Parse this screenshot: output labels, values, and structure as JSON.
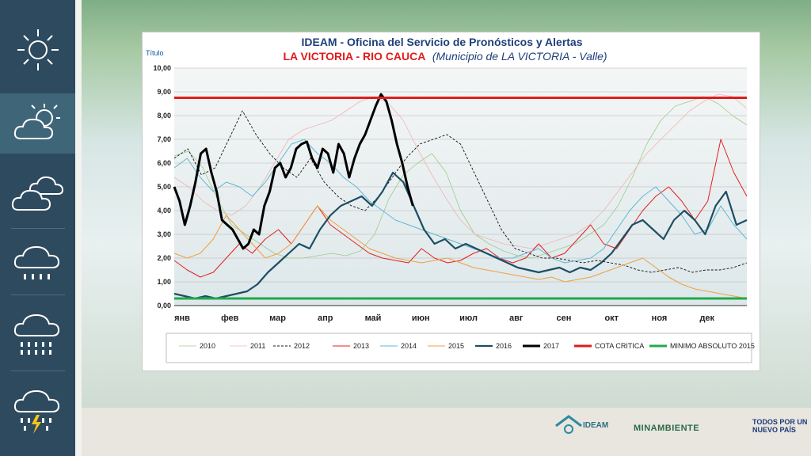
{
  "sidebar": {
    "items": [
      {
        "icon": "sun-icon"
      },
      {
        "icon": "partly-cloudy-icon",
        "active": true
      },
      {
        "icon": "cloudy-icon"
      },
      {
        "icon": "light-rain-icon"
      },
      {
        "icon": "heavy-rain-icon"
      },
      {
        "icon": "thunderstorm-icon"
      }
    ]
  },
  "footer": {
    "ideam_label": "IDEAM",
    "ministry_label": "MINAMBIENTE",
    "gov_line1": "TODOS POR UN",
    "gov_line2": "NUEVO PAÍS"
  },
  "chart_data": {
    "type": "line",
    "title": "IDEAM - Oficina del Servicio de Pronósticos y Alertas",
    "subtitle_red": "LA VICTORIA - RIO CAUCA",
    "subtitle_italic": "(Municipio de LA VICTORIA - Valle)",
    "ylabel": "Título",
    "ylim": [
      0,
      10
    ],
    "yticks": [
      "0,00",
      "1,00",
      "2,00",
      "3,00",
      "4,00",
      "5,00",
      "6,00",
      "7,00",
      "8,00",
      "9,00",
      "10,00"
    ],
    "xlabels": [
      "янв",
      "фев",
      "мар",
      "апр",
      "май",
      "июн",
      "июл",
      "авг",
      "сен",
      "окт",
      "ноя",
      "дек"
    ],
    "grid": true,
    "legend_position": "bottom",
    "series": [
      {
        "name": "2010",
        "color": "#9ccc8a",
        "width": 0.8,
        "dash": "",
        "values": [
          6.3,
          6.5,
          5.8,
          4.5,
          3.4,
          3.0,
          2.6,
          2.2,
          2.0,
          2.0,
          2.1,
          2.2,
          2.1,
          2.3,
          3.0,
          4.5,
          5.5,
          6.0,
          6.4,
          5.6,
          4.0,
          3.0,
          2.6,
          2.3,
          2.1,
          2.0,
          2.2,
          2.4,
          2.6,
          3.0,
          3.4,
          4.2,
          5.4,
          6.8,
          7.8,
          8.4,
          8.6,
          8.8,
          8.5,
          8.0,
          7.6
        ]
      },
      {
        "name": "2011",
        "color": "#f0b4b4",
        "width": 0.8,
        "dash": "",
        "values": [
          5.4,
          5.0,
          4.4,
          4.0,
          3.8,
          4.2,
          5.0,
          6.0,
          7.0,
          7.4,
          7.6,
          7.8,
          8.2,
          8.6,
          8.8,
          8.5,
          7.8,
          6.6,
          5.5,
          4.5,
          3.6,
          3.0,
          2.8,
          2.6,
          2.5,
          2.4,
          2.6,
          2.8,
          3.0,
          3.4,
          4.0,
          4.8,
          5.6,
          6.4,
          7.0,
          7.6,
          8.2,
          8.6,
          8.9,
          8.8,
          8.3
        ]
      },
      {
        "name": "2012",
        "color": "#111111",
        "width": 0.9,
        "dash": "3,2",
        "values": [
          6.2,
          6.6,
          5.5,
          5.8,
          7.0,
          8.2,
          7.2,
          6.4,
          5.8,
          5.4,
          6.2,
          5.2,
          4.6,
          4.2,
          4.0,
          4.6,
          5.4,
          6.2,
          6.8,
          7.0,
          7.2,
          6.8,
          5.6,
          4.4,
          3.2,
          2.4,
          2.2,
          2.0,
          2.0,
          1.9,
          1.8,
          1.9,
          1.8,
          1.7,
          1.5,
          1.4,
          1.5,
          1.6,
          1.4,
          1.5,
          1.5,
          1.6,
          1.8
        ]
      },
      {
        "name": "2013",
        "color": "#e32020",
        "width": 1.0,
        "dash": "",
        "values": [
          1.9,
          1.5,
          1.2,
          1.4,
          2.0,
          2.6,
          2.2,
          2.8,
          3.2,
          2.6,
          3.4,
          4.2,
          3.4,
          3.0,
          2.6,
          2.2,
          2.0,
          1.9,
          1.8,
          2.4,
          2.0,
          1.8,
          1.9,
          2.2,
          2.4,
          2.0,
          1.8,
          2.0,
          2.6,
          2.0,
          2.2,
          2.8,
          3.4,
          2.6,
          2.4,
          3.2,
          4.0,
          4.6,
          5.0,
          4.4,
          3.6,
          4.4,
          7.0,
          5.6,
          4.6
        ]
      },
      {
        "name": "2014",
        "color": "#5fb7d4",
        "width": 1.0,
        "dash": "",
        "values": [
          5.8,
          6.2,
          5.4,
          4.8,
          5.2,
          5.0,
          4.6,
          5.2,
          6.0,
          6.8,
          7.0,
          6.4,
          6.0,
          5.4,
          5.0,
          4.4,
          4.0,
          3.6,
          3.4,
          3.2,
          3.0,
          2.8,
          2.6,
          2.4,
          2.2,
          2.0,
          2.0,
          2.2,
          2.4,
          2.0,
          1.8,
          1.9,
          2.0,
          2.4,
          3.2,
          4.0,
          4.6,
          5.0,
          4.4,
          3.8,
          3.0,
          3.2,
          4.2,
          3.4,
          2.8
        ]
      },
      {
        "name": "2015",
        "color": "#f0a040",
        "width": 1.0,
        "dash": "",
        "values": [
          2.2,
          2.0,
          2.2,
          2.8,
          3.8,
          3.2,
          2.6,
          2.0,
          2.2,
          2.6,
          3.4,
          4.2,
          3.6,
          3.2,
          2.8,
          2.4,
          2.2,
          2.0,
          1.9,
          1.8,
          1.9,
          2.0,
          1.8,
          1.6,
          1.5,
          1.4,
          1.3,
          1.2,
          1.1,
          1.2,
          1.0,
          1.1,
          1.2,
          1.4,
          1.6,
          1.8,
          2.0,
          1.6,
          1.2,
          0.9,
          0.7,
          0.6,
          0.5,
          0.4,
          0.3
        ]
      },
      {
        "name": "2016",
        "color": "#1d4e63",
        "width": 2.2,
        "dash": "",
        "values": [
          0.5,
          0.4,
          0.3,
          0.4,
          0.3,
          0.4,
          0.5,
          0.6,
          0.9,
          1.4,
          1.8,
          2.2,
          2.6,
          2.4,
          3.2,
          3.8,
          4.2,
          4.4,
          4.6,
          4.2,
          4.8,
          5.6,
          5.2,
          4.2,
          3.2,
          2.6,
          2.8,
          2.4,
          2.6,
          2.4,
          2.2,
          2.0,
          1.8,
          1.6,
          1.5,
          1.4,
          1.5,
          1.6,
          1.4,
          1.6,
          1.5,
          1.8,
          2.2,
          2.8,
          3.4,
          3.6,
          3.2,
          2.8,
          3.6,
          4.0,
          3.6,
          3.0,
          4.2,
          4.8,
          3.4,
          3.6
        ]
      },
      {
        "name": "2017",
        "color": "#000000",
        "width": 3.0,
        "dash": "",
        "x_end": 5.0,
        "values": [
          5.0,
          4.4,
          3.4,
          4.2,
          5.2,
          6.4,
          6.6,
          5.6,
          4.8,
          3.6,
          3.4,
          3.2,
          2.8,
          2.4,
          2.6,
          3.2,
          3.0,
          4.2,
          4.8,
          5.8,
          6.0,
          5.4,
          5.8,
          6.6,
          6.8,
          6.9,
          6.2,
          5.8,
          6.6,
          6.4,
          5.6,
          6.8,
          6.4,
          5.4,
          6.2,
          6.8,
          7.2,
          7.8,
          8.4,
          8.9,
          8.6,
          7.8,
          6.8,
          6.0,
          5.0,
          4.2
        ]
      },
      {
        "name": "COTA CRITICA",
        "color": "#e01b1b",
        "width": 3.0,
        "dash": "",
        "constant": 8.75
      },
      {
        "name": "MINIMO ABSOLUTO 2015",
        "color": "#22aa4a",
        "width": 3.0,
        "dash": "",
        "constant": 0.3
      }
    ]
  }
}
